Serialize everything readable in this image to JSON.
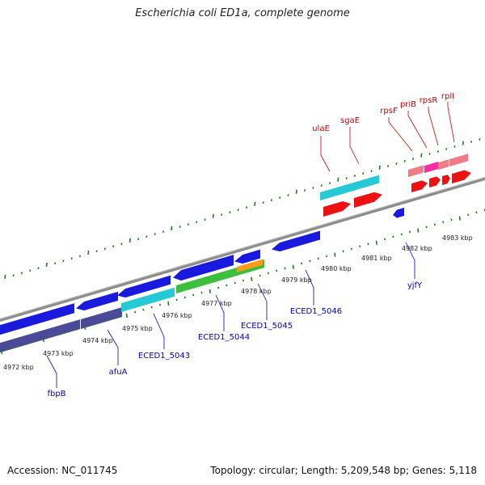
{
  "title": "Escherichia coli ED1a, complete genome",
  "footer": {
    "accession": "Accession: NC_011745",
    "summary": "Topology: circular; Length: 5,209,548 bp; Genes: 5,118"
  },
  "colors": {
    "backbone": "#8c8c8c",
    "tick": "#1f7a1f",
    "tick_label": "#222222",
    "forward_label": "#cc0000",
    "reverse_label": "#0000cc",
    "blue_gene": "#1a1adf",
    "navy_gene": "#4a4a99",
    "cyan_gene": "#26c9d6",
    "green_gene": "#3cbf3c",
    "orange_gene": "#ff9a1a",
    "red_gene": "#ee1111",
    "pink_gene": "#f07a86",
    "magenta_gene": "#ff2aa6"
  },
  "scale": {
    "tick_labels": [
      "4972 kbp",
      "4973 kbp",
      "4974 kbp",
      "4975 kbp",
      "4976 kbp",
      "4977 kbp",
      "4978 kbp",
      "4979 kbp",
      "4980 kbp",
      "4981 kbp",
      "4982 kbp",
      "4983 kbp"
    ]
  },
  "gene_labels": [
    {
      "text": "ulaE",
      "strand": "forward"
    },
    {
      "text": "sgaE",
      "strand": "forward"
    },
    {
      "text": "rpsF",
      "strand": "forward"
    },
    {
      "text": "priB",
      "strand": "forward"
    },
    {
      "text": "rpsR",
      "strand": "forward"
    },
    {
      "text": "rplI",
      "strand": "forward"
    },
    {
      "text": "yjfY",
      "strand": "reverse"
    },
    {
      "text": "ECED1_5046",
      "strand": "reverse"
    },
    {
      "text": "ECED1_5045",
      "strand": "reverse"
    },
    {
      "text": "ECED1_5044",
      "strand": "reverse"
    },
    {
      "text": "ECED1_5043",
      "strand": "reverse"
    },
    {
      "text": "afuA",
      "strand": "reverse"
    },
    {
      "text": "fbpB",
      "strand": "reverse"
    }
  ],
  "features": [
    {
      "color": "red_gene",
      "track": "forward"
    },
    {
      "color": "red_gene",
      "track": "forward"
    },
    {
      "color": "cyan_gene",
      "track": "forward"
    },
    {
      "color": "red_gene",
      "track": "forward"
    },
    {
      "color": "red_gene",
      "track": "forward"
    },
    {
      "color": "red_gene",
      "track": "forward"
    },
    {
      "color": "red_gene",
      "track": "forward"
    },
    {
      "color": "pink_gene",
      "track": "forward"
    },
    {
      "color": "magenta_gene",
      "track": "forward"
    },
    {
      "color": "pink_gene",
      "track": "forward"
    },
    {
      "color": "pink_gene",
      "track": "forward"
    },
    {
      "color": "blue_gene",
      "track": "reverse"
    },
    {
      "color": "blue_gene",
      "track": "reverse"
    },
    {
      "color": "blue_gene",
      "track": "reverse"
    },
    {
      "color": "blue_gene",
      "track": "reverse"
    },
    {
      "color": "blue_gene",
      "track": "reverse"
    },
    {
      "color": "blue_gene",
      "track": "reverse"
    },
    {
      "color": "blue_gene",
      "track": "reverse"
    },
    {
      "color": "navy_gene",
      "track": "reverse"
    },
    {
      "color": "navy_gene",
      "track": "reverse"
    },
    {
      "color": "cyan_gene",
      "track": "reverse"
    },
    {
      "color": "green_gene",
      "track": "reverse"
    },
    {
      "color": "orange_gene",
      "track": "reverse"
    }
  ]
}
